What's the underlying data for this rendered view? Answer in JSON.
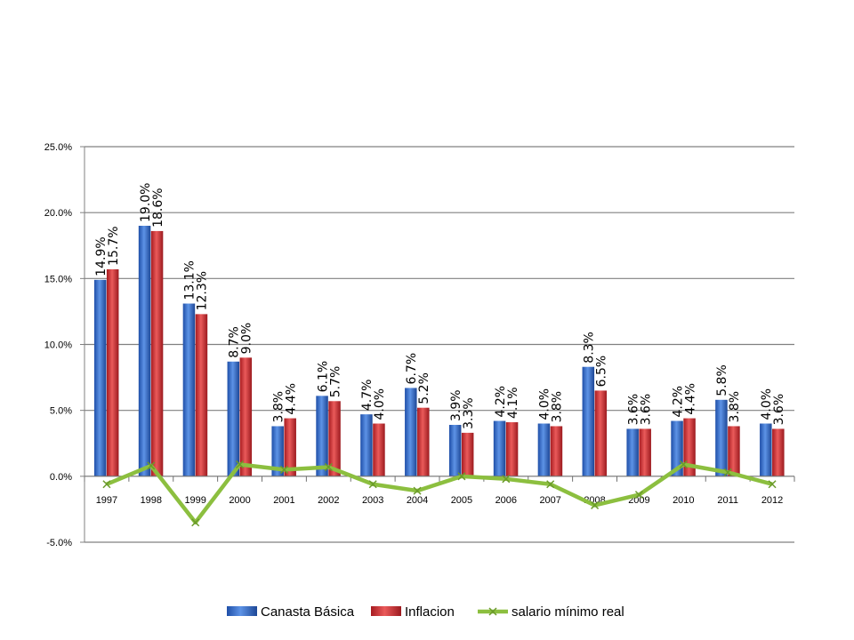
{
  "chart_data": {
    "type": "bar",
    "categories": [
      "1997",
      "1998",
      "1999",
      "2000",
      "2001",
      "2002",
      "2003",
      "2004",
      "2005",
      "2006",
      "2007",
      "2008",
      "2009",
      "2010",
      "2011",
      "2012"
    ],
    "series": [
      {
        "name": "Canasta Básica",
        "kind": "bar",
        "color": "#2e64c4",
        "values": [
          14.9,
          19.0,
          13.1,
          8.7,
          3.8,
          6.1,
          4.7,
          6.7,
          3.9,
          4.2,
          4.0,
          8.3,
          3.6,
          4.2,
          5.8,
          4.0
        ],
        "labels": [
          "14.9%",
          "19.0%",
          "13.1%",
          "8.7%",
          "3.8%",
          "6.1%",
          "4.7%",
          "6.7%",
          "3.9%",
          "4.2%",
          "4.0%",
          "8.3%",
          "3.6%",
          "4.2%",
          "5.8%",
          "4.0%"
        ]
      },
      {
        "name": "Inflacion",
        "kind": "bar",
        "color": "#d0282e",
        "values": [
          15.7,
          18.6,
          12.3,
          9.0,
          4.4,
          5.7,
          4.0,
          5.2,
          3.3,
          4.1,
          3.8,
          6.5,
          3.6,
          4.4,
          3.8,
          3.6
        ],
        "labels": [
          "15.7%",
          "18.6%",
          "12.3%",
          "9.0%",
          "4.4%",
          "5.7%",
          "4.0%",
          "5.2%",
          "3.3%",
          "4.1%",
          "3.8%",
          "6.5%",
          "3.6%",
          "4.4%",
          "3.8%",
          "3.6%"
        ]
      },
      {
        "name": "salario mínimo real",
        "kind": "line",
        "color": "#8cbf3f",
        "values": [
          -0.6,
          0.8,
          -3.5,
          0.9,
          0.5,
          0.7,
          -0.6,
          -1.1,
          0.0,
          -0.2,
          -0.6,
          -2.2,
          -1.4,
          0.9,
          0.3,
          -0.6
        ]
      }
    ],
    "yticks": [
      "25.0%",
      "20.0%",
      "15.0%",
      "10.0%",
      "5.0%",
      "0.0%",
      "-5.0%"
    ],
    "ylim": [
      -5,
      25
    ],
    "grid": true,
    "legend_position": "bottom"
  }
}
